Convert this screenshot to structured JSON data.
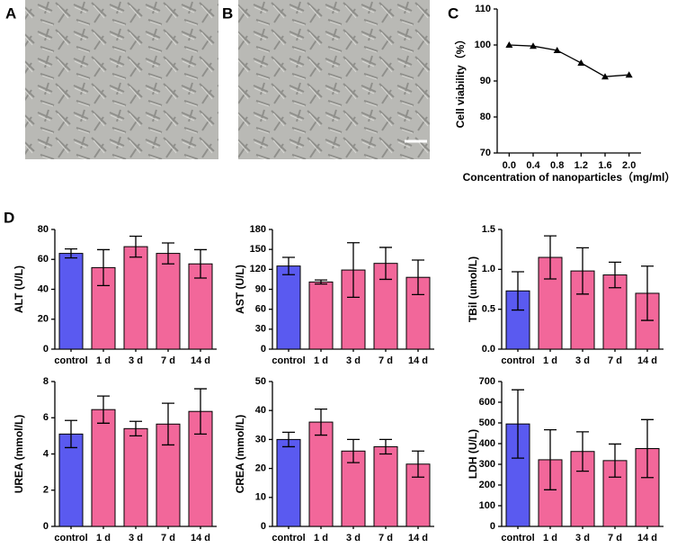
{
  "panel_labels": [
    "A",
    "B",
    "C",
    "D"
  ],
  "chart_data": [
    {
      "type": "line",
      "xlabel": "Concentration of nanoparticles（mg/ml）",
      "ylabel": "Cell viability（%）",
      "x": [
        0,
        0.4,
        0.8,
        1.2,
        1.6,
        2.0
      ],
      "values": [
        100,
        99.7,
        98.5,
        95,
        91.2,
        91.7
      ],
      "color": "#000000",
      "xlim": [
        -0.2,
        2.2
      ],
      "xticks": [
        {
          "value": 0,
          "label": "0.0"
        },
        0.4,
        0.8,
        1.2,
        1.6,
        {
          "value": 2,
          "label": "2.0"
        }
      ],
      "ylim": [
        70,
        110
      ],
      "yticks": [
        70,
        80,
        90,
        100,
        110
      ]
    },
    {
      "type": "bar",
      "ylabel": "ALT (U/L)",
      "categories": [
        "control",
        "1 d",
        "3 d",
        "7 d",
        "14 d"
      ],
      "values": [
        64,
        54.5,
        68.5,
        64,
        57
      ],
      "errors": [
        3,
        12,
        7,
        7,
        9.5
      ],
      "colors": [
        "#5a5af0",
        "#f2679a",
        "#f2679a",
        "#f2679a",
        "#f2679a"
      ],
      "ylim": [
        0,
        80
      ],
      "yticks": [
        0,
        20,
        40,
        60,
        80
      ]
    },
    {
      "type": "bar",
      "ylabel": "AST (U/L)",
      "categories": [
        "control",
        "1 d",
        "3 d",
        "7 d",
        "14 d"
      ],
      "values": [
        125,
        101,
        119,
        129,
        108
      ],
      "errors": [
        13,
        3,
        41,
        24,
        26
      ],
      "colors": [
        "#5a5af0",
        "#f2679a",
        "#f2679a",
        "#f2679a",
        "#f2679a"
      ],
      "ylim": [
        0,
        180
      ],
      "yticks": [
        0,
        30,
        60,
        90,
        120,
        150,
        180
      ]
    },
    {
      "type": "bar",
      "ylabel": "TBil (umol/L)",
      "categories": [
        "control",
        "1 d",
        "3 d",
        "7 d",
        "14 d"
      ],
      "values": [
        0.73,
        1.15,
        0.98,
        0.93,
        0.7
      ],
      "errors": [
        0.24,
        0.27,
        0.29,
        0.16,
        0.34
      ],
      "colors": [
        "#5a5af0",
        "#f2679a",
        "#f2679a",
        "#f2679a",
        "#f2679a"
      ],
      "ylim": [
        0,
        1.5
      ],
      "yticks": [
        {
          "value": 0,
          "label": "0.0"
        },
        0.5,
        {
          "value": 1,
          "label": "1.0"
        },
        1.5
      ]
    },
    {
      "type": "bar",
      "ylabel": "UREA (mmol/L)",
      "categories": [
        "control",
        "1 d",
        "3 d",
        "7 d",
        "14 d"
      ],
      "values": [
        5.1,
        6.45,
        5.4,
        5.65,
        6.35
      ],
      "errors": [
        0.75,
        0.75,
        0.4,
        1.15,
        1.25
      ],
      "colors": [
        "#5a5af0",
        "#f2679a",
        "#f2679a",
        "#f2679a",
        "#f2679a"
      ],
      "ylim": [
        0,
        8
      ],
      "yticks": [
        0,
        2,
        4,
        6,
        8
      ]
    },
    {
      "type": "bar",
      "ylabel": "CREA (mmol/L)",
      "categories": [
        "control",
        "1 d",
        "3 d",
        "7 d",
        "14 d"
      ],
      "values": [
        30,
        36,
        26,
        27.5,
        21.5
      ],
      "errors": [
        2.5,
        4.5,
        4,
        2.5,
        4.5
      ],
      "colors": [
        "#5a5af0",
        "#f2679a",
        "#f2679a",
        "#f2679a",
        "#f2679a"
      ],
      "ylim": [
        0,
        50
      ],
      "yticks": [
        0,
        10,
        20,
        30,
        40,
        50
      ]
    },
    {
      "type": "bar",
      "ylabel": "LDH (U/L)",
      "categories": [
        "control",
        "1 d",
        "3 d",
        "7 d",
        "14 d"
      ],
      "values": [
        495,
        322,
        362,
        318,
        376
      ],
      "errors": [
        165,
        145,
        95,
        80,
        140
      ],
      "colors": [
        "#5a5af0",
        "#f2679a",
        "#f2679a",
        "#f2679a",
        "#f2679a"
      ],
      "ylim": [
        0,
        700
      ],
      "yticks": [
        0,
        100,
        200,
        300,
        400,
        500,
        600,
        700
      ]
    }
  ]
}
